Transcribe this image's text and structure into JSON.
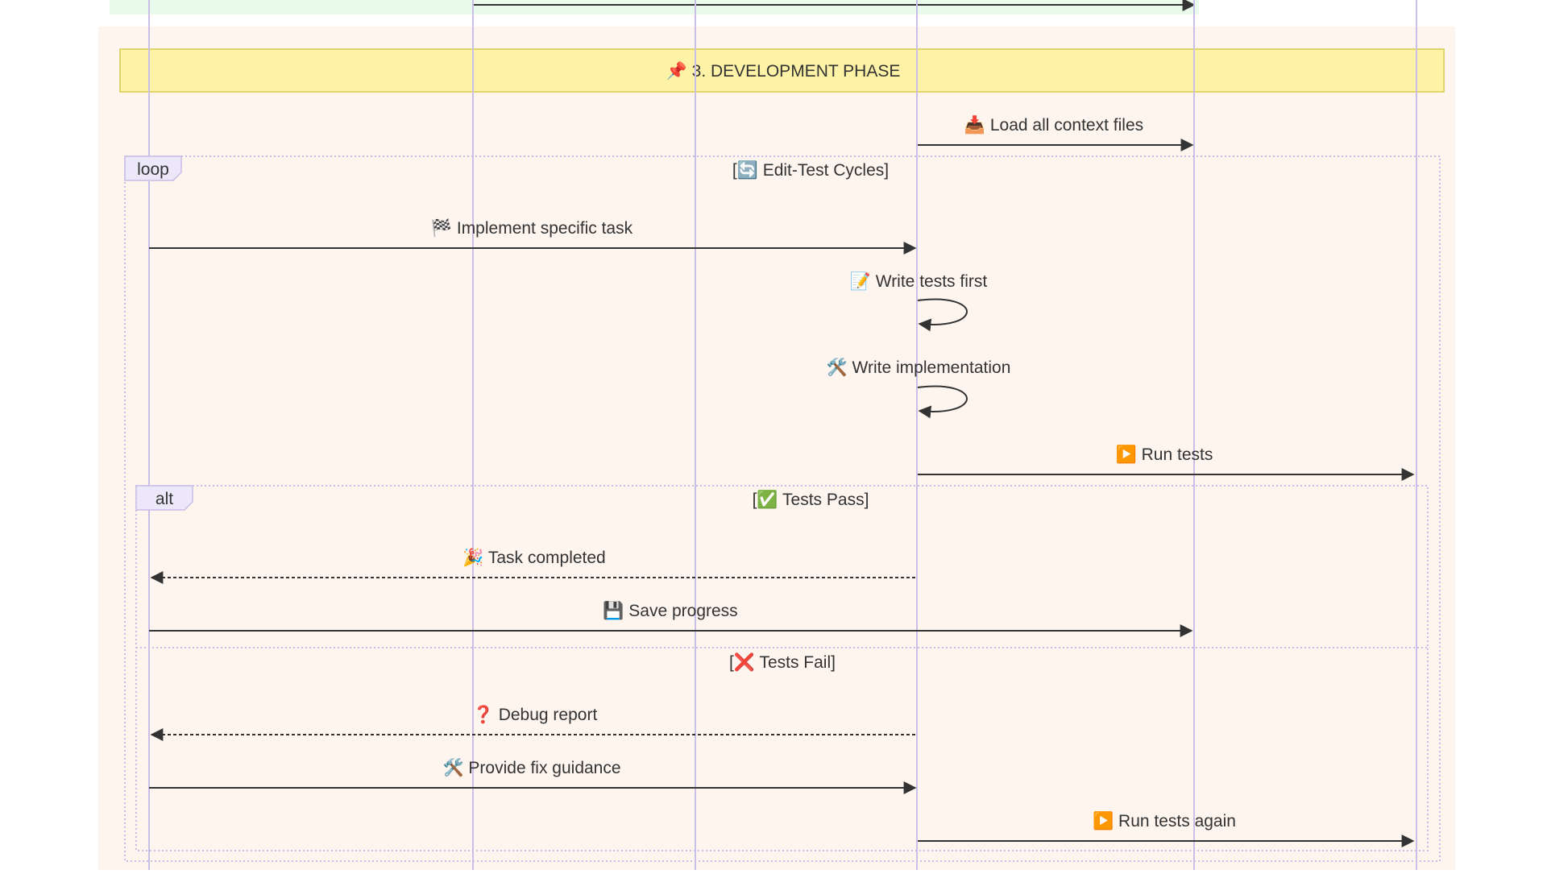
{
  "phase": {
    "title": "📌 3. DEVELOPMENT PHASE",
    "band_color": "#fdf5ee",
    "banner_color": "#fdf2a6",
    "banner_border": "#e0d46a",
    "prev_band_color": "#e9fbe9"
  },
  "colors": {
    "lifeline": "#c9bfe8",
    "arrow": "#333333",
    "fragment_border": "#c8bde6",
    "fragment_label_bg": "#ece8fa",
    "text": "#333333"
  },
  "loop": {
    "keyword": "loop",
    "condition": "[🔄 Edit-Test Cycles]"
  },
  "alt": {
    "keyword": "alt",
    "condition_pass": "[✅ Tests Pass]",
    "condition_fail": "[❌ Tests Fail]"
  },
  "messages": [
    {
      "id": "load-context",
      "label": "📥 Load all context files",
      "style": "solid"
    },
    {
      "id": "implement-task",
      "label": "🏁 Implement specific task",
      "style": "solid"
    },
    {
      "id": "write-tests",
      "label": "📝 Write tests first",
      "style": "self"
    },
    {
      "id": "write-impl",
      "label": "🛠️ Write implementation",
      "style": "self"
    },
    {
      "id": "run-tests",
      "label": "▶️ Run tests",
      "style": "solid"
    },
    {
      "id": "task-completed",
      "label": "🎉 Task completed",
      "style": "dashed"
    },
    {
      "id": "save-progress",
      "label": "💾 Save progress",
      "style": "solid"
    },
    {
      "id": "debug-report",
      "label": "❓ Debug report",
      "style": "dashed"
    },
    {
      "id": "fix-guidance",
      "label": "🛠️ Provide fix guidance",
      "style": "solid"
    },
    {
      "id": "run-tests-again",
      "label": "▶️ Run tests again",
      "style": "solid"
    }
  ]
}
